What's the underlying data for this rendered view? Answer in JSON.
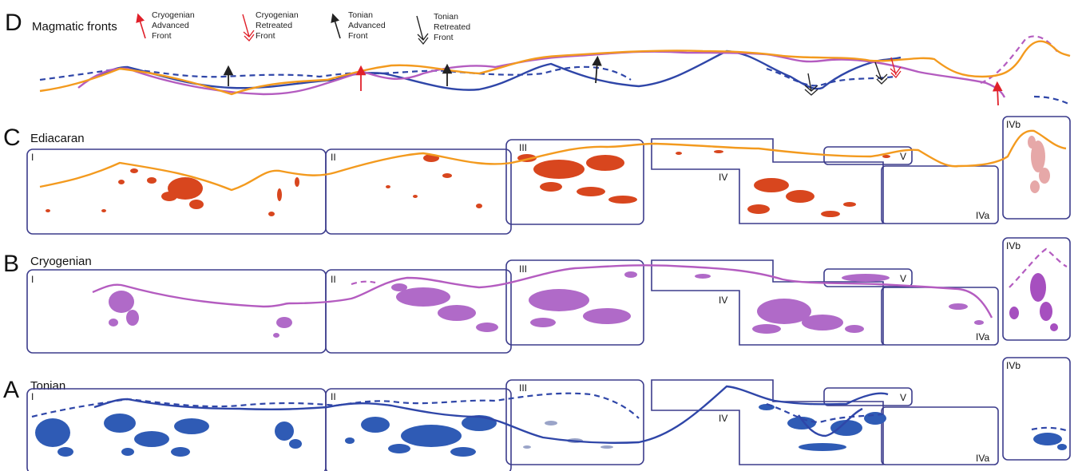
{
  "panel_d": {
    "letter": "D",
    "title": "Magmatic fronts",
    "legend": [
      {
        "line1": "Cryogenian",
        "line2": "Advanced",
        "line3": "Front"
      },
      {
        "line1": "Cryogenian",
        "line2": "Retreated",
        "line3": "Front"
      },
      {
        "line1": "Tonian",
        "line2": "Advanced",
        "line3": "Front"
      },
      {
        "line1": "Tonian",
        "line2": "Retreated",
        "line3": "Front"
      }
    ]
  },
  "panel_c": {
    "letter": "C",
    "title": "Ediacaran"
  },
  "panel_b": {
    "letter": "B",
    "title": "Cryogenian"
  },
  "panel_a": {
    "letter": "A",
    "title": "Tonian"
  },
  "region_labels": {
    "r1": "I",
    "r2": "II",
    "r3": "III",
    "r4": "IV",
    "r5": "V",
    "r4a": "IVa",
    "r4b": "IVb"
  },
  "colors": {
    "ediacaran": "#f39a1e",
    "cryogenian": "#b45cc0",
    "tonian": "#2f46a8",
    "cryo_front": "#e0202a",
    "tonian_front": "#222222",
    "edia_fill": "#d8461e",
    "cryo_fill": "#b06ac8",
    "tonian_fill": "#2f5bb5",
    "box": "#3c3c8c"
  }
}
